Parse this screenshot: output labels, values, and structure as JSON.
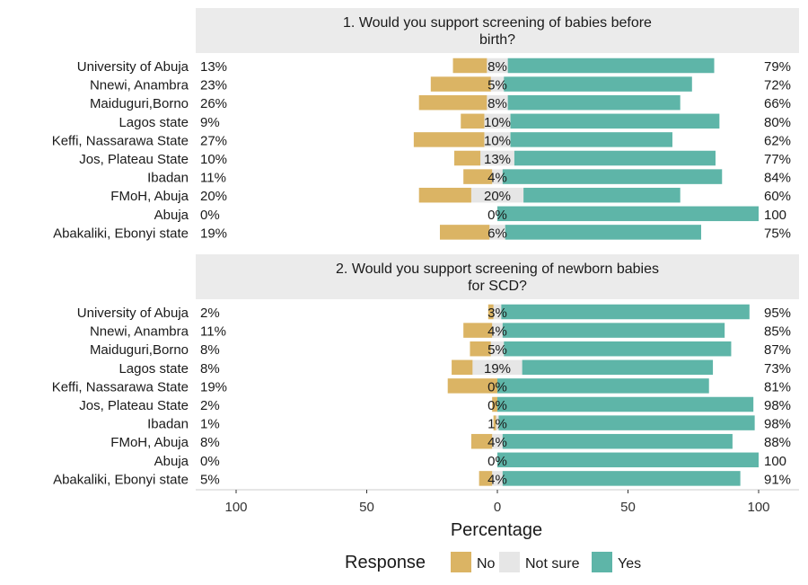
{
  "chart_data": {
    "type": "bar",
    "variant": "diverging-stacked-horizontal",
    "xlabel": "Percentage",
    "x_ticks": [
      "100",
      "50",
      "0",
      "50",
      "100"
    ],
    "xlim": [
      -100,
      100
    ],
    "legend": {
      "title": "Response",
      "position": "bottom",
      "entries": [
        {
          "name": "No",
          "color": "#DBB464"
        },
        {
          "name": "Not sure",
          "color": "#E6E6E6"
        },
        {
          "name": "Yes",
          "color": "#5EB5A8"
        }
      ]
    },
    "panel_background": "#FFFFFF",
    "strip_background": "#EBEBEB",
    "panels": [
      {
        "title_lines": [
          "1. Would you support screening of babies before",
          "birth?"
        ],
        "categories": [
          "University of Abuja",
          "Nnewi, Anambra",
          "Maiduguri,Borno",
          "Lagos state",
          "Keffi, Nassarawa State",
          "Jos, Plateau State",
          "Ibadan",
          "FMoH, Abuja",
          "Abuja",
          "Abakaliki, Ebonyi state"
        ],
        "series": [
          {
            "name": "No",
            "values": [
              13,
              23,
              26,
              9,
              27,
              10,
              11,
              20,
              0,
              19
            ]
          },
          {
            "name": "Not sure",
            "values": [
              8,
              5,
              8,
              10,
              10,
              13,
              4,
              20,
              0,
              6
            ]
          },
          {
            "name": "Yes",
            "values": [
              79,
              72,
              66,
              80,
              62,
              77,
              84,
              60,
              100,
              75
            ]
          }
        ],
        "left_labels": [
          "13%",
          "23%",
          "26%",
          "9%",
          "27%",
          "10%",
          "11%",
          "20%",
          "0%",
          "19%"
        ],
        "center_labels": [
          "8%",
          "5%",
          "8%",
          "10%",
          "10%",
          "13%",
          "4%",
          "20%",
          "0%",
          "6%"
        ],
        "right_labels": [
          "79%",
          "72%",
          "66%",
          "80%",
          "62%",
          "77%",
          "84%",
          "60%",
          "100",
          "75%"
        ]
      },
      {
        "title_lines": [
          "2. Would you support screening of newborn babies",
          "for SCD?"
        ],
        "categories": [
          "University of Abuja",
          "Nnewi, Anambra",
          "Maiduguri,Borno",
          "Lagos state",
          "Keffi, Nassarawa State",
          "Jos, Plateau State",
          "Ibadan",
          "FMoH, Abuja",
          "Abuja",
          "Abakaliki, Ebonyi state"
        ],
        "series": [
          {
            "name": "No",
            "values": [
              2,
              11,
              8,
              8,
              19,
              2,
              1,
              8,
              0,
              5
            ]
          },
          {
            "name": "Not sure",
            "values": [
              3,
              4,
              5,
              19,
              0,
              0,
              1,
              4,
              0,
              4
            ]
          },
          {
            "name": "Yes",
            "values": [
              95,
              85,
              87,
              73,
              81,
              98,
              98,
              88,
              100,
              91
            ]
          }
        ],
        "left_labels": [
          "2%",
          "11%",
          "8%",
          "8%",
          "19%",
          "2%",
          "1%",
          "8%",
          "0%",
          "5%"
        ],
        "center_labels": [
          "3%",
          "4%",
          "5%",
          "19%",
          "0%",
          "0%",
          "1%",
          "4%",
          "0%",
          "4%"
        ],
        "right_labels": [
          "95%",
          "85%",
          "87%",
          "73%",
          "81%",
          "98%",
          "98%",
          "88%",
          "100",
          "91%"
        ]
      }
    ]
  }
}
